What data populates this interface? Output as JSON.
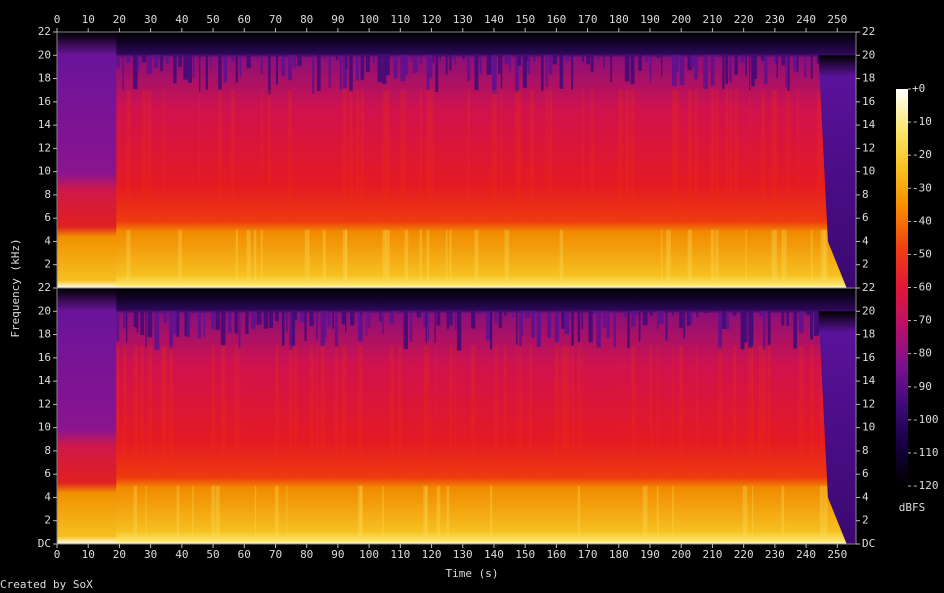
{
  "chart_data": {
    "type": "spectrogram",
    "xlabel": "Time (s)",
    "ylabel": "Frequency (kHz)",
    "footer": "Created by SoX",
    "xlim": [
      0,
      256
    ],
    "xticks": [
      0,
      10,
      20,
      30,
      40,
      50,
      60,
      70,
      80,
      90,
      100,
      110,
      120,
      130,
      140,
      150,
      160,
      170,
      180,
      190,
      200,
      210,
      220,
      230,
      240,
      250
    ],
    "ylim": [
      0,
      22
    ],
    "channels": [
      {
        "yticks": [
          2,
          4,
          6,
          8,
          10,
          12,
          14,
          16,
          18,
          20,
          22
        ]
      },
      {
        "yticks": [
          {
            "value": 0,
            "label": "DC"
          },
          2,
          4,
          6,
          8,
          10,
          12,
          14,
          16,
          18,
          20,
          22
        ]
      }
    ],
    "colorbar": {
      "label": "dBFS",
      "clim": [
        -120,
        0
      ],
      "ticks": [
        {
          "value": 0,
          "label": "+0"
        },
        -10,
        -20,
        -30,
        -40,
        -50,
        -60,
        -70,
        -80,
        -90,
        -100,
        -110,
        -120
      ],
      "colormap": [
        "#000000",
        "#150040",
        "#3c0a78",
        "#7a1090",
        "#b8106a",
        "#e01838",
        "#f04010",
        "#f88a00",
        "#f8c020",
        "#fce870",
        "#ffffff"
      ]
    }
  }
}
